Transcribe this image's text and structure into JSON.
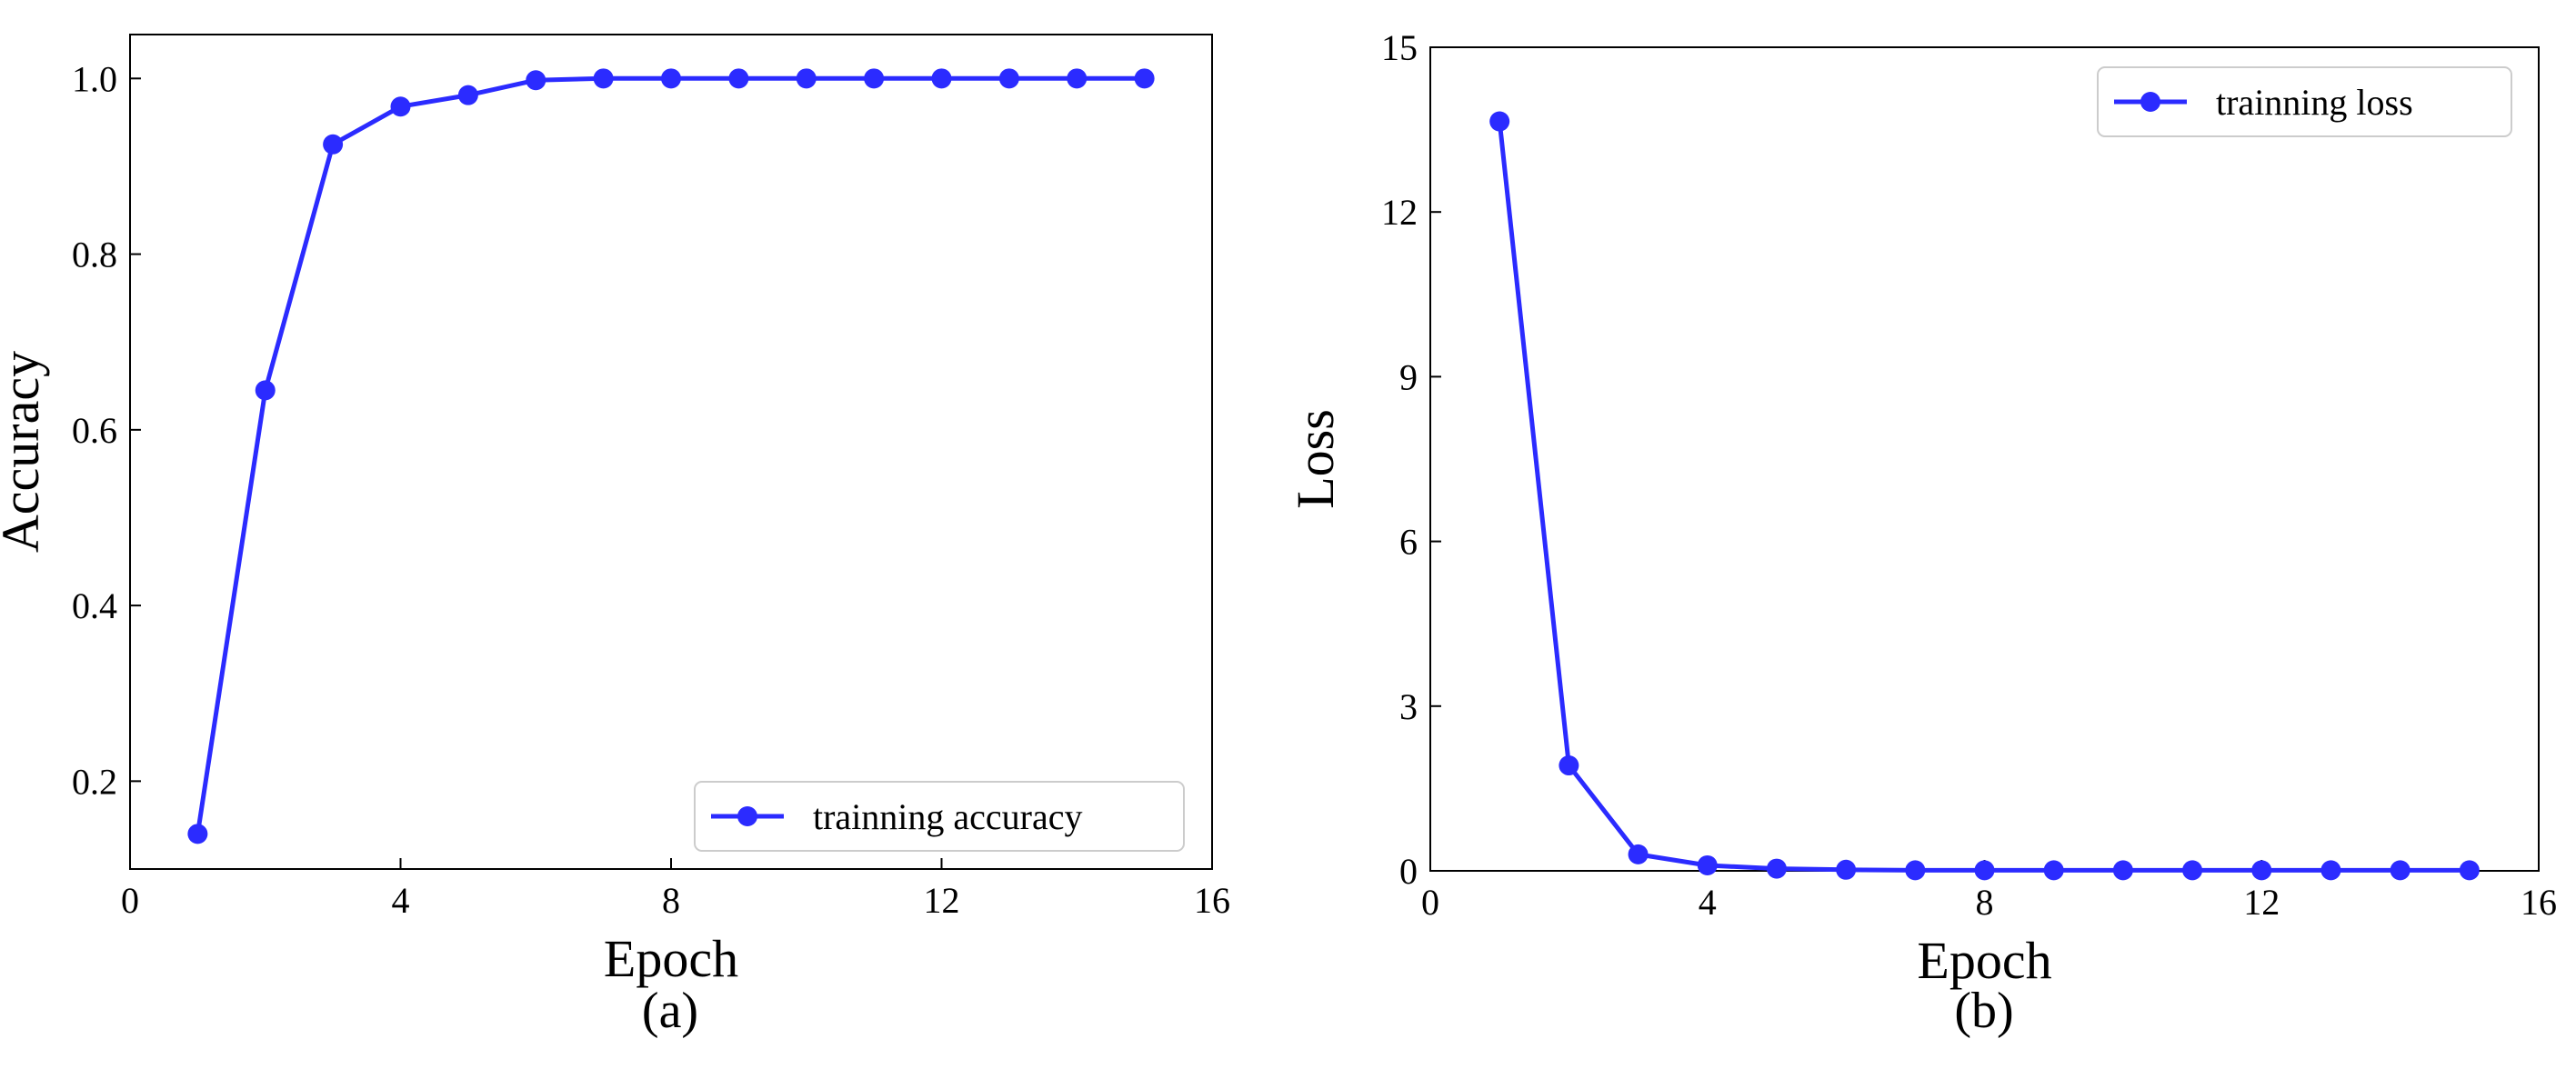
{
  "chart_data": [
    {
      "type": "line",
      "caption": "(a)",
      "xlabel": "Epoch",
      "ylabel": "Accuracy",
      "xlim": [
        0,
        16
      ],
      "ylim": [
        0.1,
        1.05
      ],
      "xticks": [
        0,
        4,
        8,
        12,
        16
      ],
      "yticks": [
        0.2,
        0.4,
        0.6,
        0.8,
        1.0
      ],
      "xtick_labels": [
        "0",
        "4",
        "8",
        "12",
        "16"
      ],
      "ytick_labels": [
        "0.2",
        "0.4",
        "0.6",
        "0.8",
        "1.0"
      ],
      "grid": false,
      "legend": "lower-right",
      "color": "#2b2bff",
      "series": [
        {
          "name": "trainning accuracy",
          "x": [
            1,
            2,
            3,
            4,
            5,
            6,
            7,
            8,
            9,
            10,
            11,
            12,
            13,
            14,
            15
          ],
          "values": [
            0.14,
            0.645,
            0.925,
            0.968,
            0.981,
            0.998,
            1.0,
            1.0,
            1.0,
            1.0,
            1.0,
            1.0,
            1.0,
            1.0,
            1.0
          ]
        }
      ]
    },
    {
      "type": "line",
      "caption": "(b)",
      "xlabel": "Epoch",
      "ylabel": "Loss",
      "xlim": [
        0,
        16
      ],
      "ylim": [
        0,
        15
      ],
      "xticks": [
        0,
        4,
        8,
        12,
        16
      ],
      "yticks": [
        0,
        3,
        6,
        9,
        12,
        15
      ],
      "xtick_labels": [
        "0",
        "4",
        "8",
        "12",
        "16"
      ],
      "ytick_labels": [
        "0",
        "3",
        "6",
        "9",
        "12",
        "15"
      ],
      "grid": false,
      "legend": "top-right",
      "color": "#2b2bff",
      "series": [
        {
          "name": "trainning loss",
          "x": [
            1,
            2,
            3,
            4,
            5,
            6,
            7,
            8,
            9,
            10,
            11,
            12,
            13,
            14,
            15
          ],
          "values": [
            13.65,
            1.92,
            0.3,
            0.1,
            0.04,
            0.02,
            0.01,
            0.01,
            0.01,
            0.01,
            0.01,
            0.01,
            0.01,
            0.01,
            0.01
          ]
        }
      ]
    }
  ]
}
